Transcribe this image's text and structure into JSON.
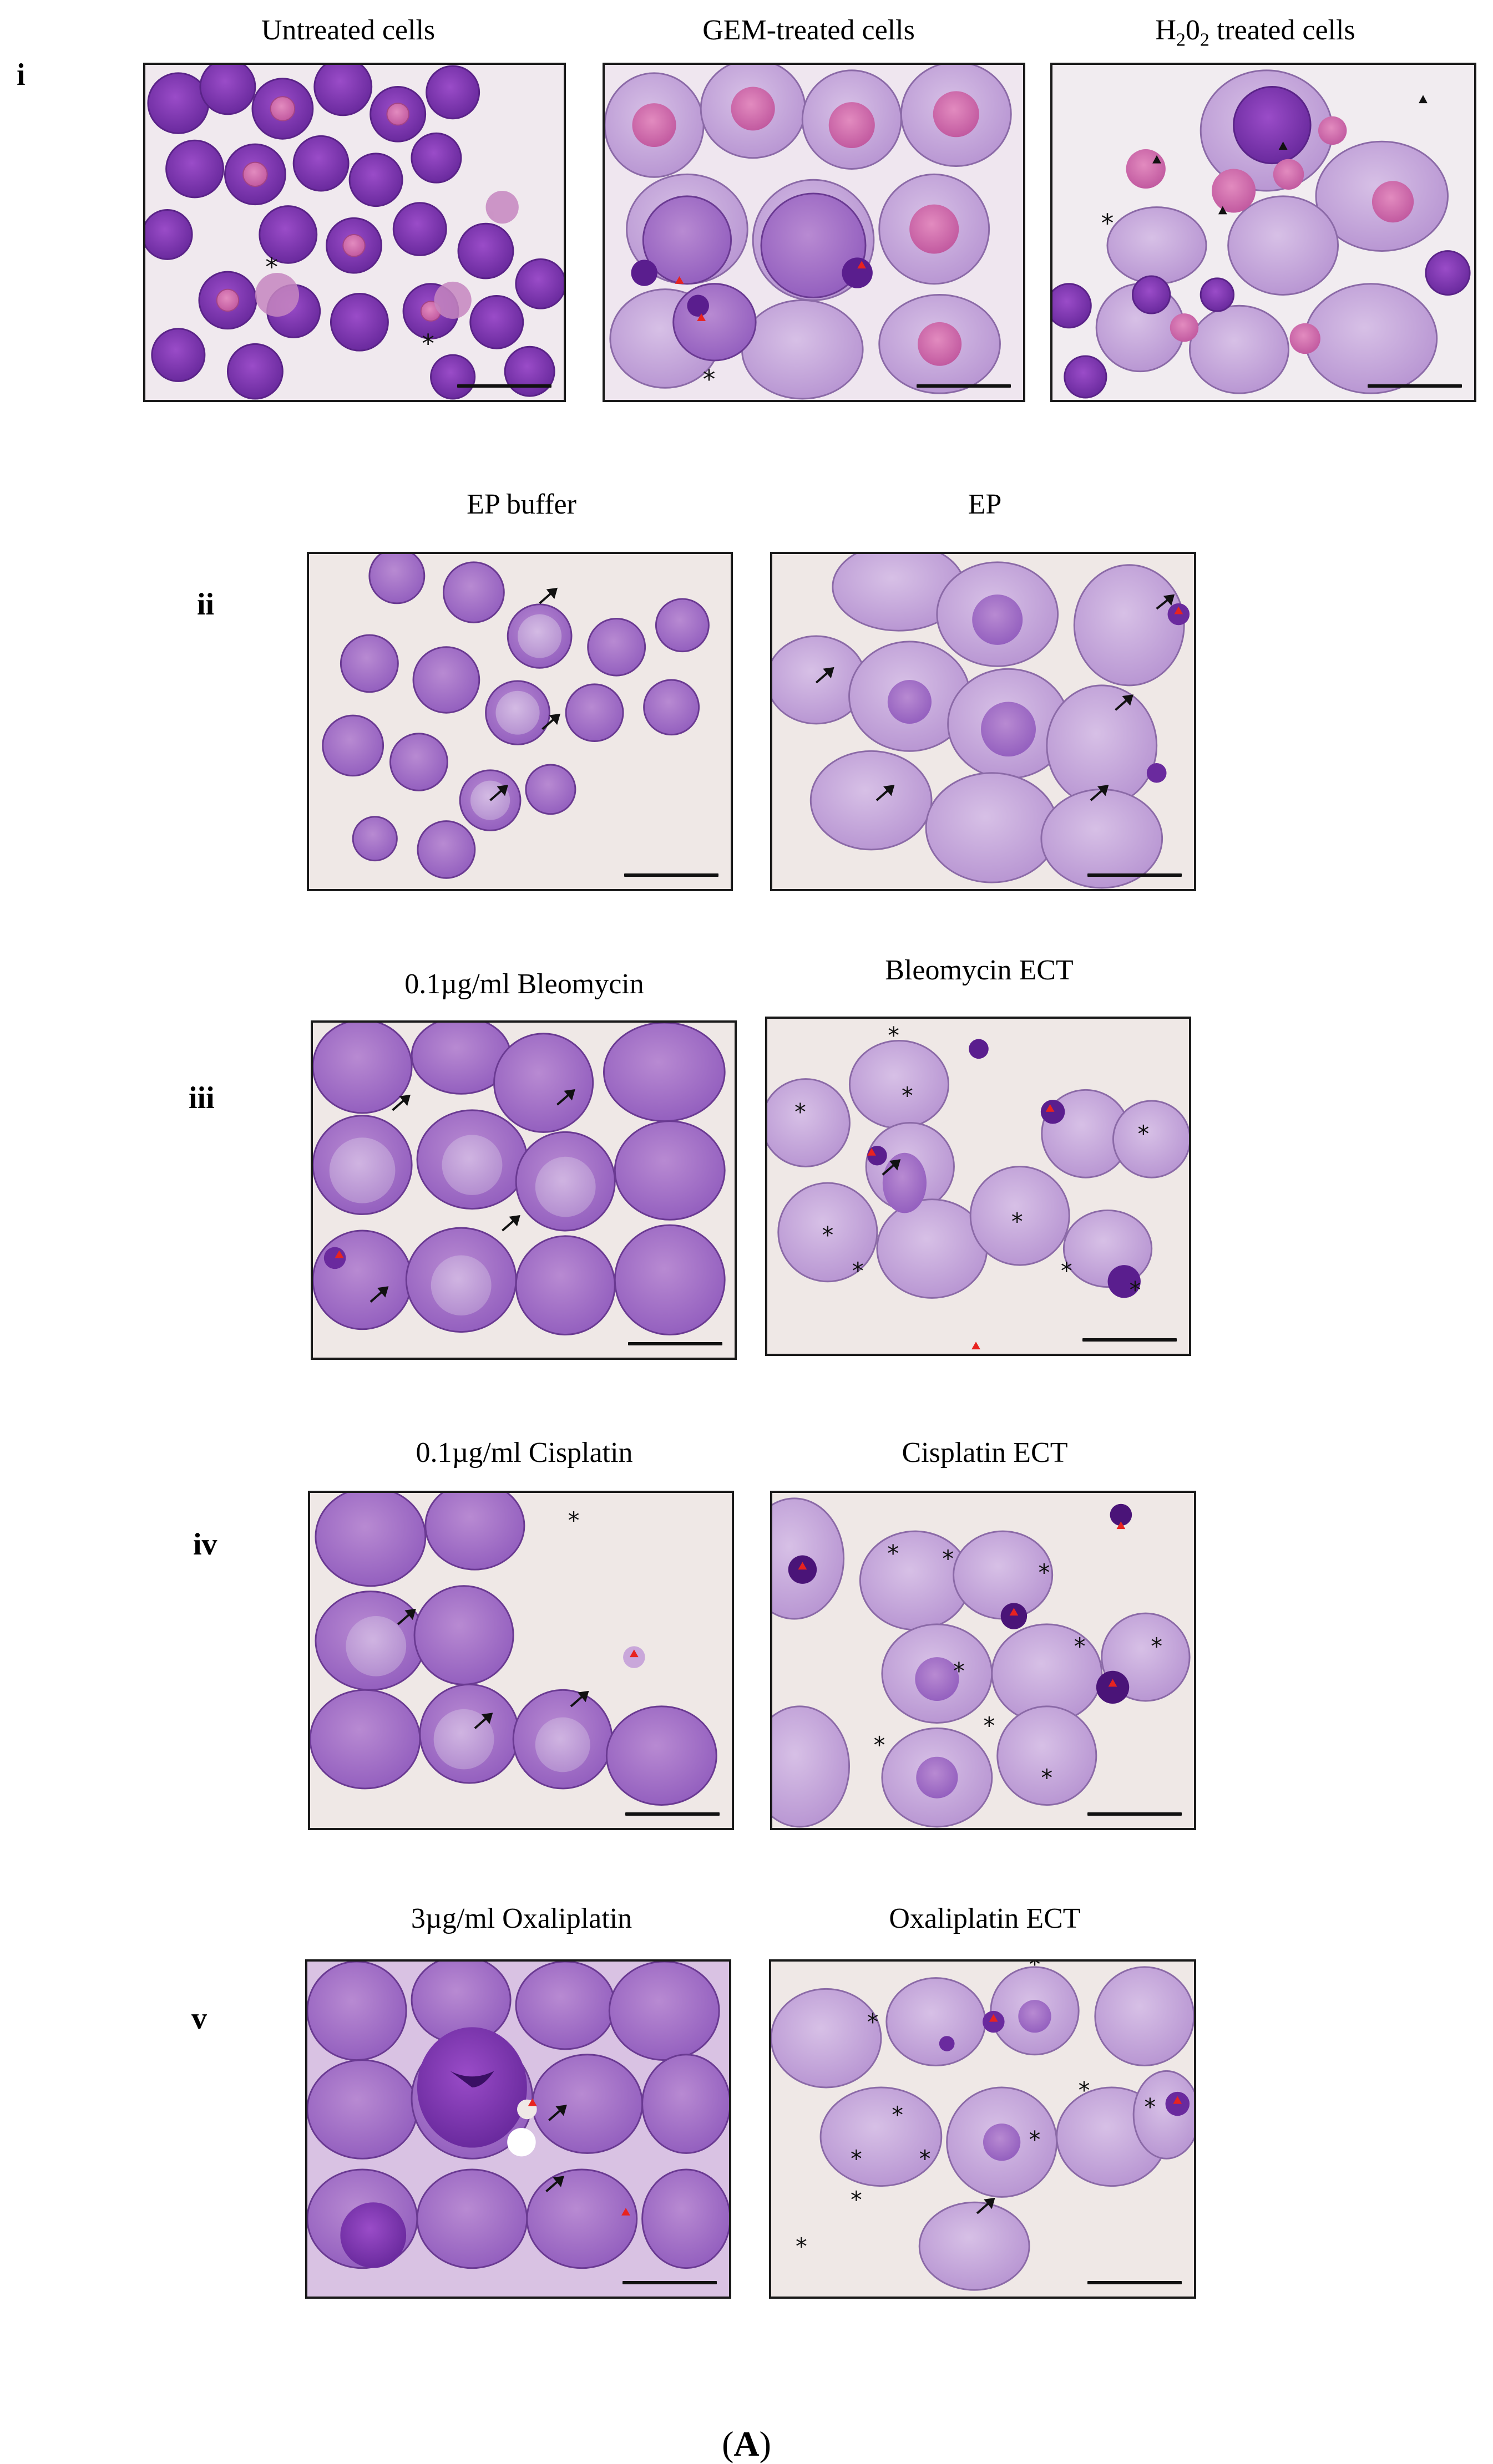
{
  "rows": [
    {
      "label": "i",
      "panels": [
        {
          "title": "Untreated cells"
        },
        {
          "title": "GEM-treated cells"
        },
        {
          "title_html": "H<sub>2</sub>0<sub>2</sub> treated cells",
          "title": "H202 treated cells"
        }
      ]
    },
    {
      "label": "ii",
      "panels": [
        {
          "title": "EP buffer"
        },
        {
          "title": "EP"
        }
      ]
    },
    {
      "label": "iii",
      "panels": [
        {
          "title": "0.1µg/ml  Bleomycin"
        },
        {
          "title": "Bleomycin  ECT"
        }
      ]
    },
    {
      "label": "iv",
      "panels": [
        {
          "title": "0.1µg/ml  Cisplatin"
        },
        {
          "title": "Cisplatin  ECT"
        }
      ]
    },
    {
      "label": "v",
      "panels": [
        {
          "title": "3µg/ml  Oxaliplatin"
        },
        {
          "title": "Oxaliplatin  ECT"
        }
      ]
    }
  ],
  "figure_label": {
    "open": "(",
    "letter": "A",
    "close": ")"
  },
  "colors": {
    "background": "#ffffff",
    "slide": "#efe8e6",
    "cell_dark": "#8a3fb8",
    "cell_light": "#c9a7da",
    "nucleus_pink": "#d86aa8",
    "marker_red": "#e8231f",
    "marker_black": "#111111"
  },
  "markers": [
    "asterisk",
    "black-arrow",
    "red-triangle",
    "black-triangle"
  ]
}
